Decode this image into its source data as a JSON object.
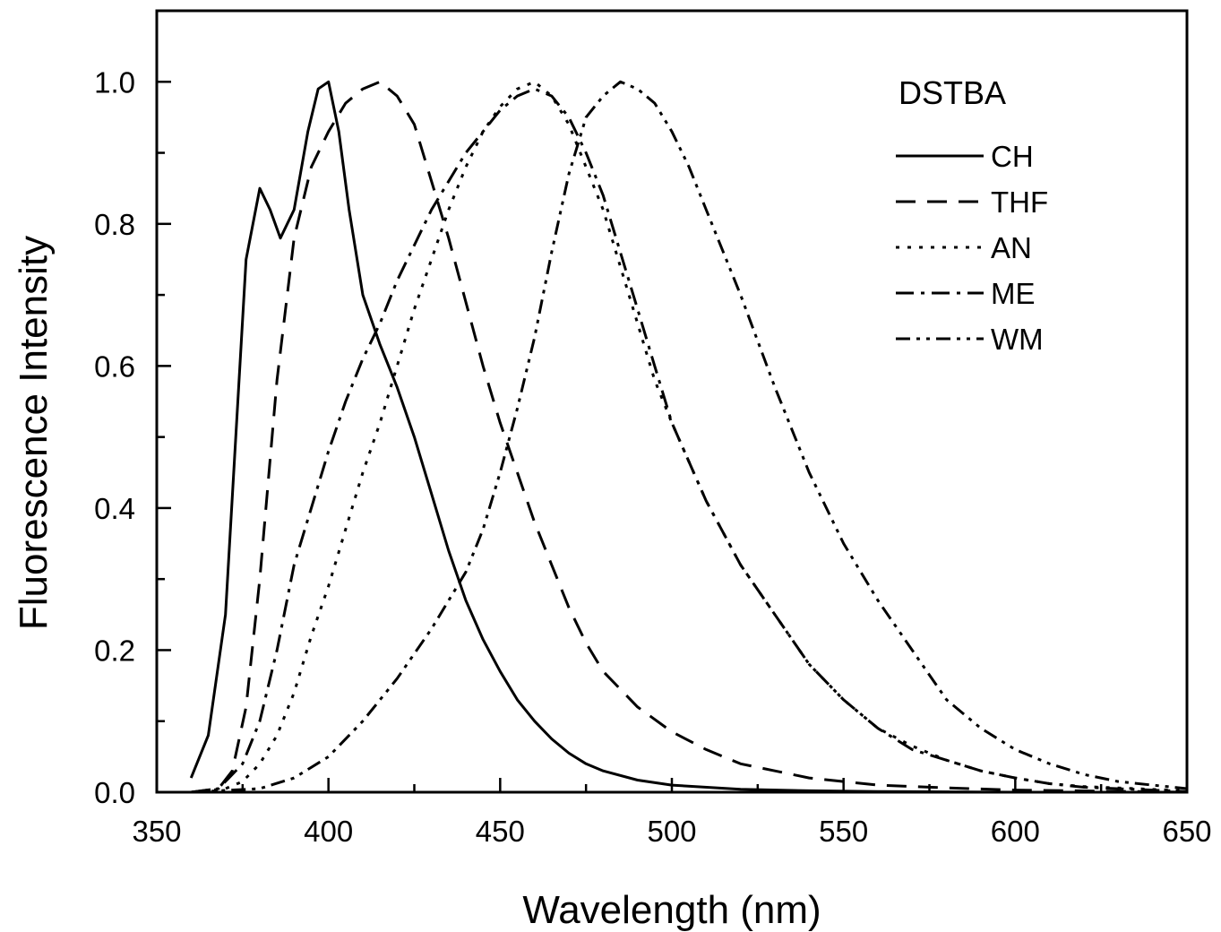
{
  "chart_data": {
    "type": "line",
    "title": "",
    "xlabel": "Wavelength (nm)",
    "ylabel": "Fluorescence Intensity",
    "xlim": [
      350,
      650
    ],
    "ylim": [
      0.0,
      1.1
    ],
    "x_ticks": [
      "350",
      "400",
      "450",
      "500",
      "550",
      "600",
      "650"
    ],
    "y_ticks": [
      "0.0",
      "0.2",
      "0.4",
      "0.6",
      "0.8",
      "1.0"
    ],
    "grid": false,
    "legend": {
      "title": "DSTBA",
      "position": "top-right"
    },
    "series": [
      {
        "name": "CH",
        "dash": "solid",
        "points": [
          [
            360,
            0.02
          ],
          [
            365,
            0.08
          ],
          [
            370,
            0.25
          ],
          [
            373,
            0.5
          ],
          [
            376,
            0.75
          ],
          [
            380,
            0.85
          ],
          [
            383,
            0.82
          ],
          [
            386,
            0.78
          ],
          [
            390,
            0.82
          ],
          [
            394,
            0.93
          ],
          [
            397,
            0.99
          ],
          [
            400,
            1.0
          ],
          [
            403,
            0.93
          ],
          [
            406,
            0.82
          ],
          [
            410,
            0.7
          ],
          [
            415,
            0.63
          ],
          [
            420,
            0.57
          ],
          [
            425,
            0.5
          ],
          [
            430,
            0.42
          ],
          [
            435,
            0.34
          ],
          [
            440,
            0.27
          ],
          [
            445,
            0.215
          ],
          [
            450,
            0.17
          ],
          [
            455,
            0.13
          ],
          [
            460,
            0.1
          ],
          [
            465,
            0.075
          ],
          [
            470,
            0.055
          ],
          [
            475,
            0.04
          ],
          [
            480,
            0.03
          ],
          [
            490,
            0.017
          ],
          [
            500,
            0.01
          ],
          [
            520,
            0.004
          ],
          [
            540,
            0.002
          ],
          [
            560,
            0.001
          ],
          [
            600,
            0.0
          ],
          [
            650,
            0.0
          ]
        ]
      },
      {
        "name": "THF",
        "dash": "long-dash",
        "points": [
          [
            360,
            0.0
          ],
          [
            368,
            0.005
          ],
          [
            372,
            0.03
          ],
          [
            376,
            0.12
          ],
          [
            380,
            0.3
          ],
          [
            385,
            0.58
          ],
          [
            390,
            0.78
          ],
          [
            395,
            0.88
          ],
          [
            400,
            0.93
          ],
          [
            405,
            0.97
          ],
          [
            410,
            0.99
          ],
          [
            415,
            1.0
          ],
          [
            420,
            0.98
          ],
          [
            425,
            0.94
          ],
          [
            430,
            0.86
          ],
          [
            435,
            0.78
          ],
          [
            440,
            0.69
          ],
          [
            445,
            0.6
          ],
          [
            450,
            0.52
          ],
          [
            455,
            0.45
          ],
          [
            460,
            0.38
          ],
          [
            465,
            0.32
          ],
          [
            470,
            0.26
          ],
          [
            475,
            0.21
          ],
          [
            480,
            0.17
          ],
          [
            490,
            0.12
          ],
          [
            500,
            0.085
          ],
          [
            510,
            0.06
          ],
          [
            520,
            0.04
          ],
          [
            530,
            0.03
          ],
          [
            540,
            0.02
          ],
          [
            550,
            0.015
          ],
          [
            560,
            0.01
          ],
          [
            580,
            0.006
          ],
          [
            600,
            0.003
          ],
          [
            650,
            0.0
          ]
        ]
      },
      {
        "name": "AN",
        "dash": "dot",
        "points": [
          [
            360,
            0.0
          ],
          [
            370,
            0.005
          ],
          [
            375,
            0.015
          ],
          [
            380,
            0.04
          ],
          [
            385,
            0.08
          ],
          [
            390,
            0.14
          ],
          [
            395,
            0.22
          ],
          [
            400,
            0.29
          ],
          [
            405,
            0.37
          ],
          [
            410,
            0.45
          ],
          [
            415,
            0.52
          ],
          [
            420,
            0.6
          ],
          [
            425,
            0.68
          ],
          [
            430,
            0.75
          ],
          [
            435,
            0.82
          ],
          [
            440,
            0.88
          ],
          [
            445,
            0.93
          ],
          [
            450,
            0.965
          ],
          [
            455,
            0.99
          ],
          [
            460,
            1.0
          ],
          [
            465,
            0.98
          ],
          [
            470,
            0.94
          ],
          [
            475,
            0.88
          ],
          [
            480,
            0.82
          ],
          [
            485,
            0.74
          ],
          [
            490,
            0.66
          ],
          [
            495,
            0.58
          ],
          [
            500,
            0.52
          ],
          [
            510,
            0.41
          ],
          [
            520,
            0.32
          ],
          [
            530,
            0.25
          ],
          [
            540,
            0.18
          ],
          [
            550,
            0.13
          ],
          [
            560,
            0.09
          ],
          [
            570,
            0.065
          ],
          [
            580,
            0.045
          ],
          [
            590,
            0.03
          ],
          [
            600,
            0.02
          ],
          [
            610,
            0.012
          ],
          [
            620,
            0.008
          ],
          [
            650,
            0.002
          ]
        ]
      },
      {
        "name": "ME",
        "dash": "dash-dot",
        "points": [
          [
            360,
            0.0
          ],
          [
            368,
            0.005
          ],
          [
            375,
            0.04
          ],
          [
            380,
            0.1
          ],
          [
            385,
            0.2
          ],
          [
            390,
            0.32
          ],
          [
            395,
            0.4
          ],
          [
            400,
            0.48
          ],
          [
            405,
            0.55
          ],
          [
            410,
            0.61
          ],
          [
            415,
            0.66
          ],
          [
            420,
            0.72
          ],
          [
            425,
            0.77
          ],
          [
            430,
            0.82
          ],
          [
            435,
            0.86
          ],
          [
            440,
            0.9
          ],
          [
            445,
            0.93
          ],
          [
            450,
            0.96
          ],
          [
            455,
            0.98
          ],
          [
            460,
            0.99
          ],
          [
            465,
            0.98
          ],
          [
            470,
            0.95
          ],
          [
            475,
            0.9
          ],
          [
            480,
            0.84
          ],
          [
            485,
            0.76
          ],
          [
            490,
            0.68
          ],
          [
            495,
            0.6
          ],
          [
            500,
            0.52
          ],
          [
            510,
            0.41
          ],
          [
            520,
            0.32
          ],
          [
            530,
            0.25
          ],
          [
            540,
            0.18
          ],
          [
            550,
            0.13
          ],
          [
            560,
            0.09
          ],
          [
            570,
            0.06
          ],
          [
            580,
            0.045
          ],
          [
            590,
            0.03
          ],
          [
            600,
            0.02
          ],
          [
            610,
            0.012
          ],
          [
            620,
            0.007
          ],
          [
            650,
            0.001
          ]
        ]
      },
      {
        "name": "WM",
        "dash": "dash-dot-dot",
        "points": [
          [
            360,
            0.0
          ],
          [
            380,
            0.005
          ],
          [
            390,
            0.02
          ],
          [
            400,
            0.05
          ],
          [
            410,
            0.1
          ],
          [
            420,
            0.16
          ],
          [
            430,
            0.23
          ],
          [
            440,
            0.31
          ],
          [
            445,
            0.37
          ],
          [
            450,
            0.45
          ],
          [
            455,
            0.54
          ],
          [
            460,
            0.64
          ],
          [
            465,
            0.76
          ],
          [
            470,
            0.87
          ],
          [
            475,
            0.95
          ],
          [
            480,
            0.98
          ],
          [
            485,
            1.0
          ],
          [
            490,
            0.99
          ],
          [
            495,
            0.97
          ],
          [
            500,
            0.93
          ],
          [
            505,
            0.88
          ],
          [
            510,
            0.82
          ],
          [
            520,
            0.7
          ],
          [
            530,
            0.57
          ],
          [
            540,
            0.45
          ],
          [
            550,
            0.35
          ],
          [
            560,
            0.27
          ],
          [
            570,
            0.2
          ],
          [
            580,
            0.13
          ],
          [
            590,
            0.09
          ],
          [
            600,
            0.06
          ],
          [
            610,
            0.04
          ],
          [
            620,
            0.025
          ],
          [
            630,
            0.015
          ],
          [
            640,
            0.01
          ],
          [
            650,
            0.005
          ]
        ]
      }
    ]
  }
}
